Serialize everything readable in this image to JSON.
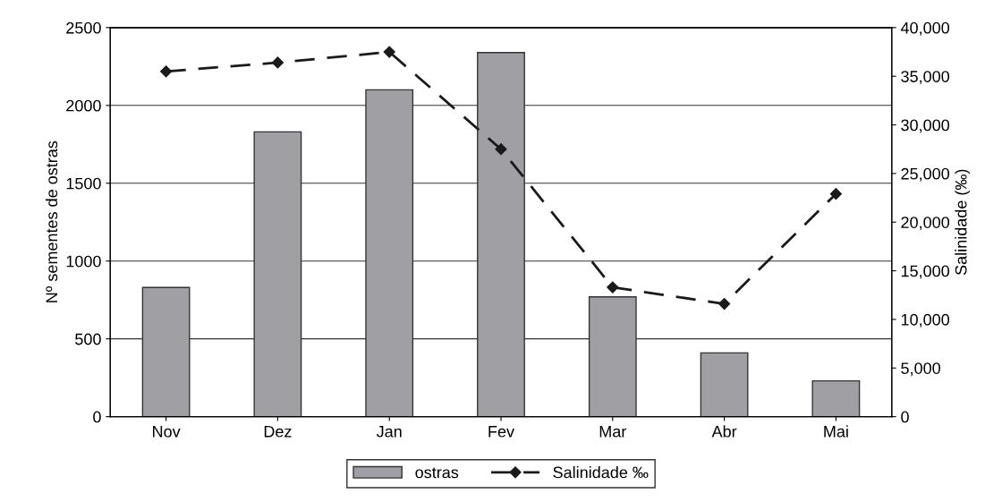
{
  "chart_data": {
    "type": "bar",
    "ylabel": "Nº sementes de ostras",
    "y2label": "Salinidade (‰)",
    "categories": [
      "Nov",
      "Dez",
      "Jan",
      "Fev",
      "Mar",
      "Abr",
      "Mai"
    ],
    "series": [
      {
        "name": "ostras",
        "color": "#a0a0a4",
        "values": [
          830,
          1830,
          2100,
          2340,
          770,
          410,
          230
        ]
      },
      {
        "name": "Salinidade ‰",
        "type": "line",
        "axis": "y2",
        "color": "#1a1a1a",
        "marker": "diamond",
        "line_style": "dashed",
        "values": [
          35500,
          36400,
          37500,
          27500,
          13300,
          11600,
          22900
        ]
      }
    ],
    "ylim": [
      0,
      2500
    ],
    "yticks": [
      0,
      500,
      1000,
      1500,
      2000,
      2500
    ],
    "y2lim": [
      0,
      40000
    ],
    "y2ticks": [
      0,
      {
        "value": 5000,
        "label": "5,000"
      },
      {
        "value": 10000,
        "label": "10,000"
      },
      {
        "value": 15000,
        "label": "15,000"
      },
      {
        "value": 20000,
        "label": "20,000"
      },
      {
        "value": 25000,
        "label": "25,000"
      },
      {
        "value": 30000,
        "label": "30,000"
      },
      {
        "value": 35000,
        "label": "35,000"
      },
      {
        "value": 40000,
        "label": "40,000"
      }
    ],
    "grid": "y",
    "legend": "bottom"
  }
}
